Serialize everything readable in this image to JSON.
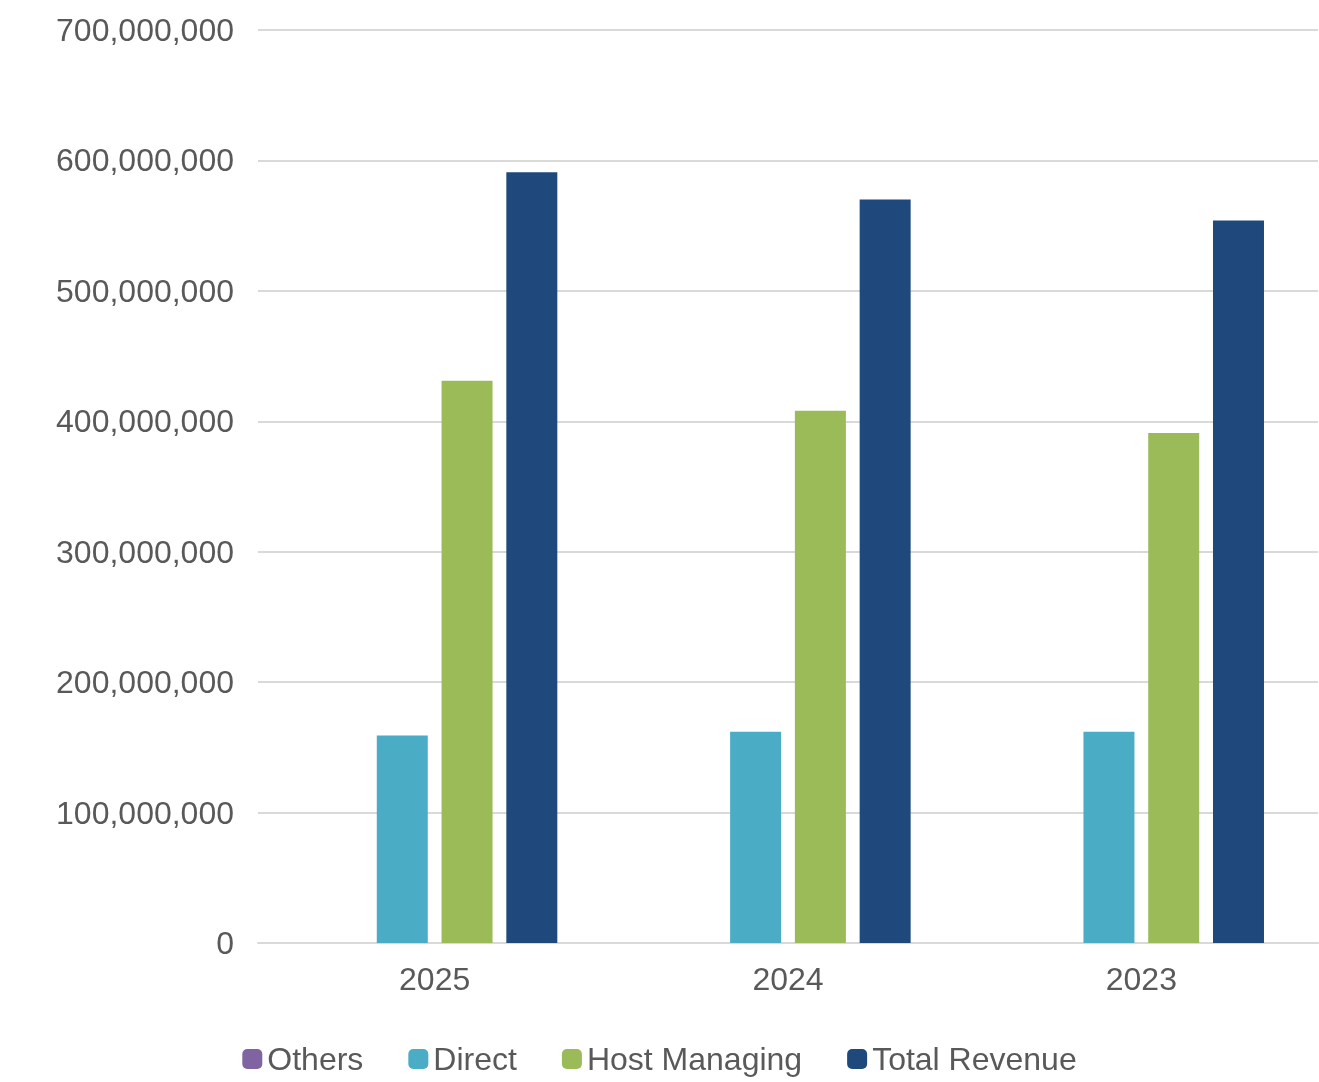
{
  "chart_data": {
    "type": "bar",
    "categories": [
      "2025",
      "2024",
      "2023"
    ],
    "series": [
      {
        "name": "Others",
        "color": "#8064a2",
        "values": [
          0,
          0,
          0
        ]
      },
      {
        "name": "Direct",
        "color": "#4bacc6",
        "values": [
          159000000,
          162000000,
          162000000
        ]
      },
      {
        "name": "Host Managing",
        "color": "#9bbb59",
        "values": [
          431000000,
          408000000,
          391000000
        ]
      },
      {
        "name": "Total Revenue",
        "color": "#1f497d",
        "values": [
          591000000,
          570000000,
          554000000
        ]
      }
    ],
    "ylim": [
      0,
      700000000
    ],
    "yticks": [
      0,
      {
        "value": 100000000,
        "label": "100,000,000"
      },
      {
        "value": 200000000,
        "label": "200,000,000"
      },
      {
        "value": 300000000,
        "label": "300,000,000"
      },
      {
        "value": 400000000,
        "label": "400,000,000"
      },
      {
        "value": 500000000,
        "label": "500,000,000"
      },
      {
        "value": 600000000,
        "label": "600,000,000"
      },
      {
        "value": 700000000,
        "label": "700,000,000"
      }
    ],
    "grid": "y",
    "legend": "bottom"
  }
}
